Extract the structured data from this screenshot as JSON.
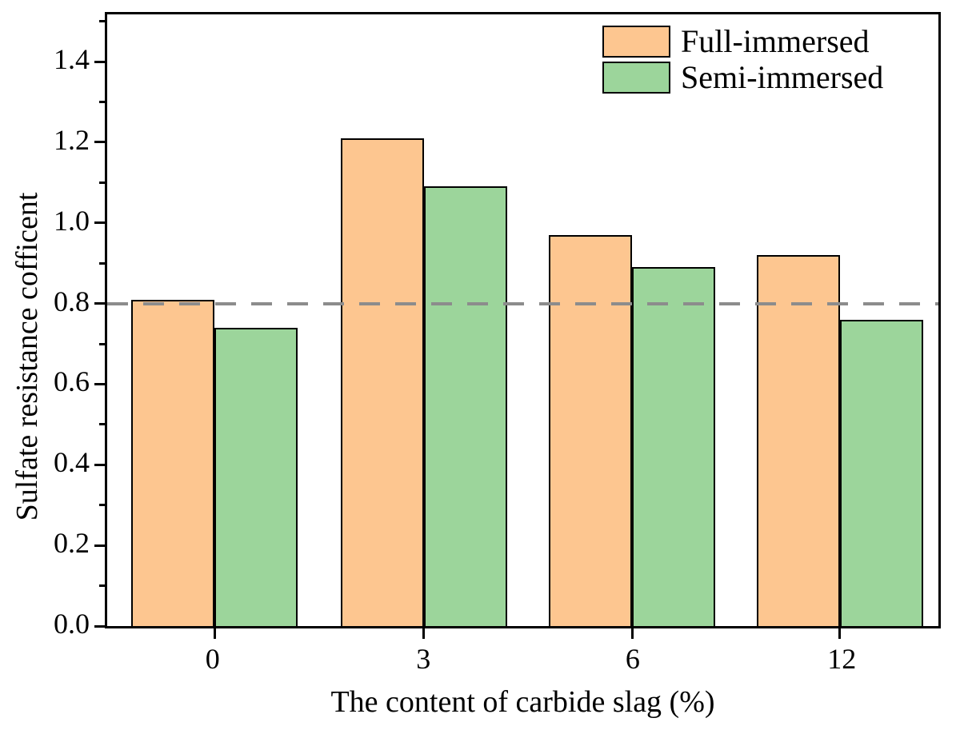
{
  "chart_data": {
    "type": "bar",
    "title": "",
    "xlabel": "The content of carbide slag (%)",
    "ylabel": "Sulfate resistance cofficent",
    "categories": [
      "0",
      "3",
      "6",
      "12"
    ],
    "series": [
      {
        "name": "Full-immersed",
        "color": "#FDC690",
        "values": [
          0.81,
          1.21,
          0.97,
          0.92
        ]
      },
      {
        "name": "Semi-immersed",
        "color": "#9CD59B",
        "values": [
          0.74,
          1.09,
          0.89,
          0.76
        ]
      }
    ],
    "y_major_ticks": [
      0.0,
      0.2,
      0.4,
      0.6,
      0.8,
      1.0,
      1.2,
      1.4
    ],
    "y_minor_ticks": [
      0.1,
      0.3,
      0.5,
      0.7,
      0.9,
      1.1,
      1.3,
      1.5
    ],
    "ylim": [
      0,
      1.517
    ],
    "reference_line": {
      "value": 0.8,
      "style": "dashed",
      "color": "#8C8C8C"
    },
    "legend_position": "top-right",
    "grid": false,
    "axis_color": "#000000",
    "bar_border_color": "#000000",
    "background_color": "#FFFFFF"
  }
}
